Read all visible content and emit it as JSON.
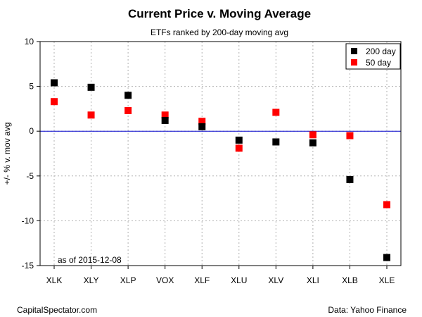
{
  "chart_data": {
    "type": "scatter",
    "title": "Current Price v. Moving Average",
    "subtitle": "ETFs ranked by 200-day moving avg",
    "ylabel": "+/- % v. mov avg",
    "xlabel": "",
    "categories": [
      "XLK",
      "XLY",
      "XLP",
      "VOX",
      "XLF",
      "XLU",
      "XLV",
      "XLI",
      "XLB",
      "XLE"
    ],
    "series": [
      {
        "name": "200 day",
        "color": "#000000",
        "values": [
          5.4,
          4.9,
          4.0,
          1.2,
          0.5,
          -1.0,
          -1.2,
          -1.3,
          -5.4,
          -14.1
        ]
      },
      {
        "name": "50 day",
        "color": "#ff0000",
        "values": [
          3.3,
          1.8,
          2.3,
          1.8,
          1.1,
          -1.9,
          2.1,
          -0.4,
          -0.5,
          -8.2
        ]
      }
    ],
    "ylim": [
      -15,
      10
    ],
    "yticks": [
      "10",
      "5",
      "0",
      "-5",
      "-10",
      "-15"
    ],
    "reference_line": {
      "y": 0,
      "color": "#0000cc"
    },
    "grid": true,
    "legend_position": "top-right",
    "annotation": "as of  2015-12-08"
  },
  "footer": {
    "left": "CapitalSpectator.com",
    "right": "Data: Yahoo Finance"
  }
}
